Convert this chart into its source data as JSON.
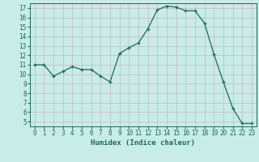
{
  "x": [
    0,
    1,
    2,
    3,
    4,
    5,
    6,
    7,
    8,
    9,
    10,
    11,
    12,
    13,
    14,
    15,
    16,
    17,
    18,
    19,
    20,
    21,
    22,
    23
  ],
  "y": [
    11,
    11,
    9.8,
    10.3,
    10.8,
    10.5,
    10.5,
    9.8,
    9.2,
    12.2,
    12.8,
    13.3,
    14.8,
    16.8,
    17.2,
    17.1,
    16.7,
    16.7,
    15.4,
    12.1,
    9.2,
    6.4,
    4.8,
    4.8
  ],
  "xlabel": "Humidex (Indice chaleur)",
  "xlim": [
    -0.5,
    23.5
  ],
  "ylim": [
    4.5,
    17.5
  ],
  "yticks": [
    5,
    6,
    7,
    8,
    9,
    10,
    11,
    12,
    13,
    14,
    15,
    16,
    17
  ],
  "xticks": [
    0,
    1,
    2,
    3,
    4,
    5,
    6,
    7,
    8,
    9,
    10,
    11,
    12,
    13,
    14,
    15,
    16,
    17,
    18,
    19,
    20,
    21,
    22,
    23
  ],
  "line_color": "#1a6b5a",
  "marker_color": "#1a6b5a",
  "bg_color": "#c8ece8",
  "grid_color": "#c8b8b8",
  "axes_color": "#1a6b5a",
  "label_color": "#1a6b5a",
  "tick_color": "#1a6b5a",
  "xlabel_fontsize": 6.5,
  "tick_fontsize": 5.5
}
